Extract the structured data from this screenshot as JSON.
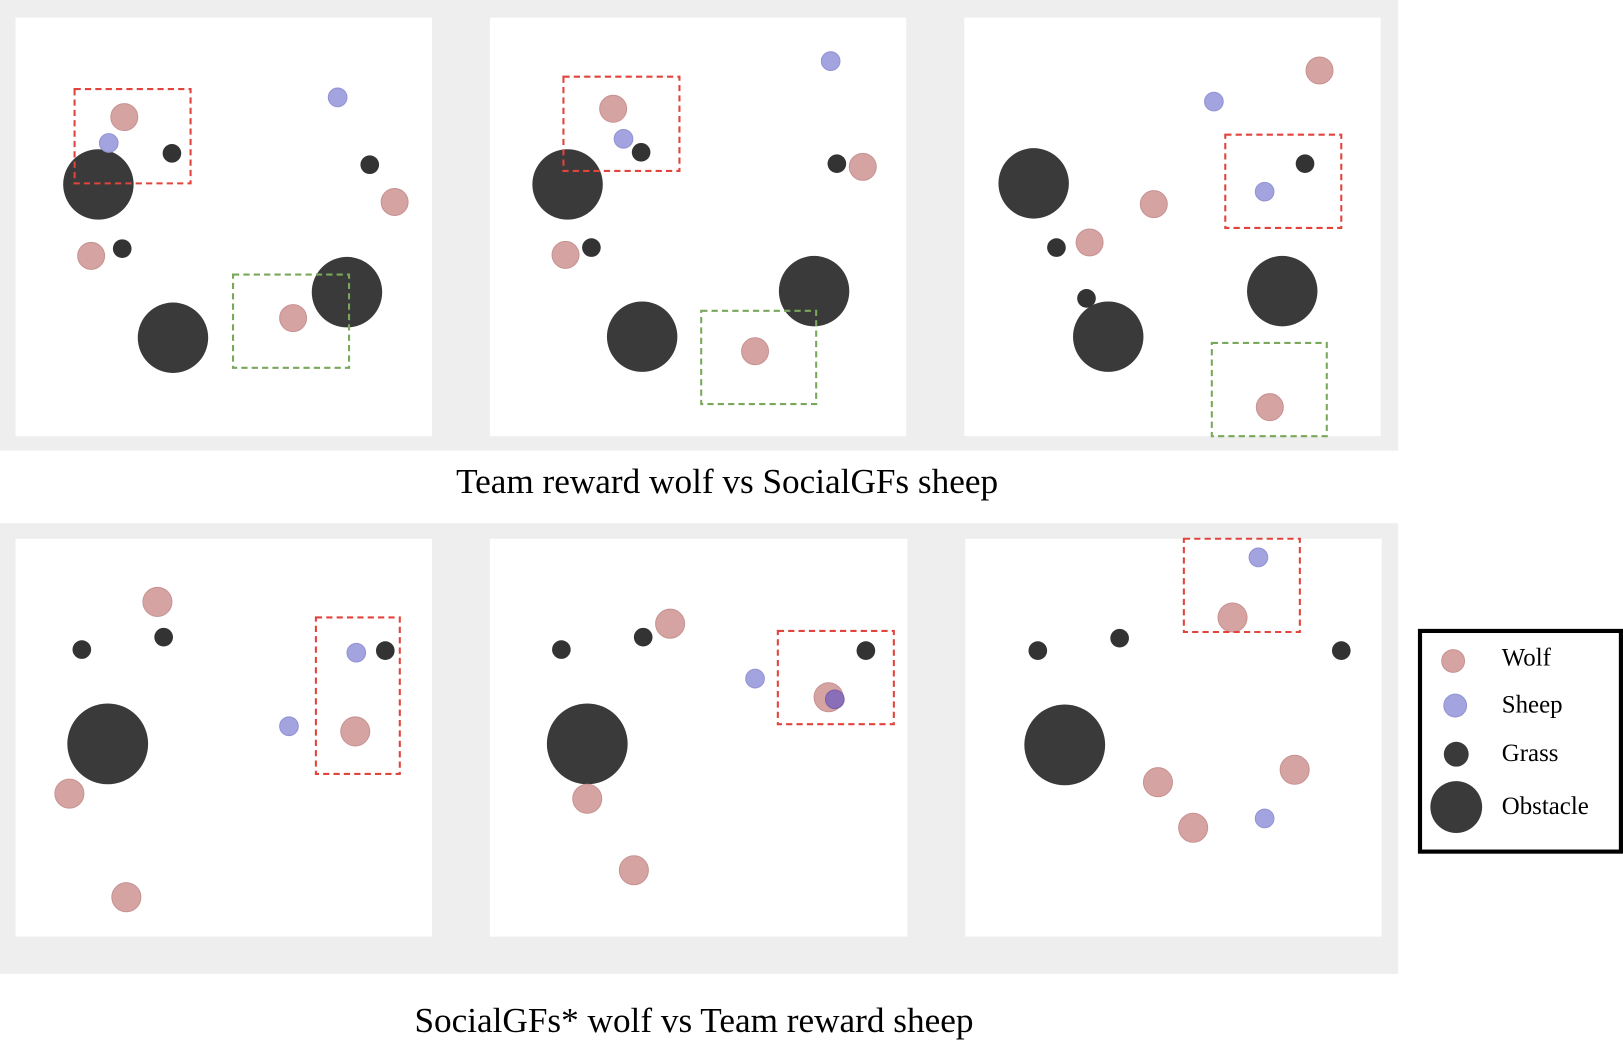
{
  "captions": [
    "Team reward wolf vs SocialGFs sheep",
    "SocialGFs* wolf vs Team reward sheep"
  ],
  "legend": [
    "Wolf",
    "Sheep",
    "Grass",
    "Obstacle"
  ]
}
